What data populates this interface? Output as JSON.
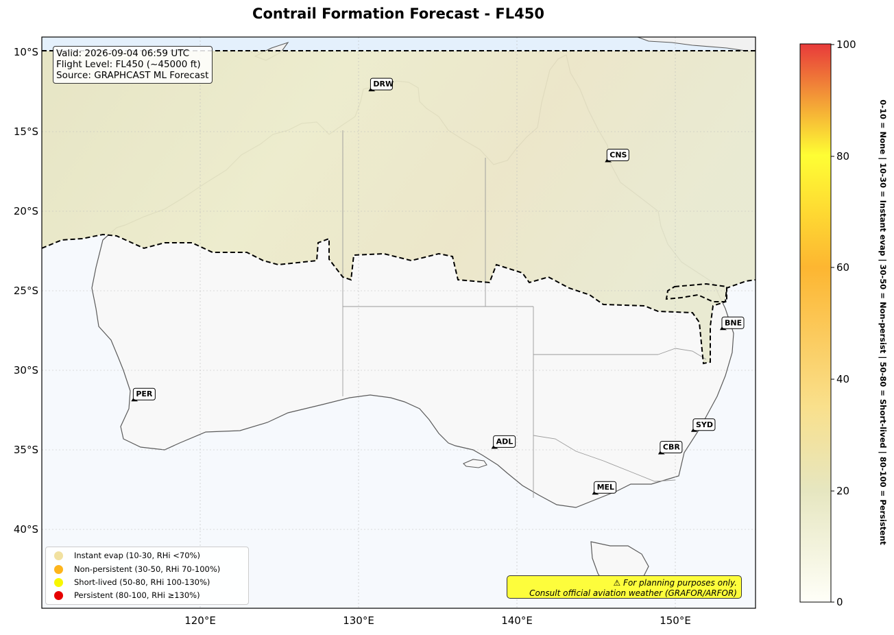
{
  "title": "Contrail Formation Forecast - FL450",
  "info": {
    "valid": "Valid: 2026-09-04 06:59 UTC",
    "flight_level": "Flight Level: FL450 (~45000 ft)",
    "source": "Source: GRAPHCAST ML Forecast"
  },
  "axes": {
    "lat_ticks": [
      "10°S",
      "15°S",
      "20°S",
      "25°S",
      "30°S",
      "35°S",
      "40°S"
    ],
    "lon_ticks": [
      "120°E",
      "130°E",
      "140°E",
      "150°E"
    ]
  },
  "cities": [
    {
      "code": "DRW",
      "lon": 130.84,
      "lat": -12.46
    },
    {
      "code": "CNS",
      "lon": 145.77,
      "lat": -16.92
    },
    {
      "code": "BNE",
      "lon": 153.03,
      "lat": -27.47
    },
    {
      "code": "PER",
      "lon": 115.86,
      "lat": -31.95
    },
    {
      "code": "SYD",
      "lon": 151.21,
      "lat": -33.87
    },
    {
      "code": "CBR",
      "lon": 149.13,
      "lat": -35.28
    },
    {
      "code": "ADL",
      "lon": 138.6,
      "lat": -34.93
    },
    {
      "code": "MEL",
      "lon": 144.96,
      "lat": -37.81
    }
  ],
  "legend": [
    {
      "label": "Instant evap (10-30, RHi <70%)",
      "color": "#f1e1a0"
    },
    {
      "label": "Non-persistent (30-50, RHi 70-100%)",
      "color": "#fdb51c"
    },
    {
      "label": "Short-lived (50-80, RHi 100-130%)",
      "color": "#f7f700"
    },
    {
      "label": "Persistent (80-100, RHi ≥130%)",
      "color": "#e60000"
    }
  ],
  "disclaimer": {
    "line1": "⚠ For planning purposes only.",
    "line2": "Consult official aviation weather (GRAFOR/ARFOR)"
  },
  "colorbar": {
    "ticks": [
      "0",
      "20",
      "40",
      "60",
      "80",
      "100"
    ],
    "label": "0-10 = None  |  10-30 = Instant evap  |  30-50 = Non-persist  |  50-80 = Short-lived  |  80-100 = Persistent",
    "colors": [
      "#fffff8",
      "#e6e6c0",
      "#f9e08c",
      "#fdb631",
      "#fefe34",
      "#e83a3a"
    ]
  },
  "map_colors": {
    "forecast_field": "#ebe8c8",
    "background": "#f5f9fd",
    "land": "#f8f8f8",
    "coastline": "#555555"
  }
}
